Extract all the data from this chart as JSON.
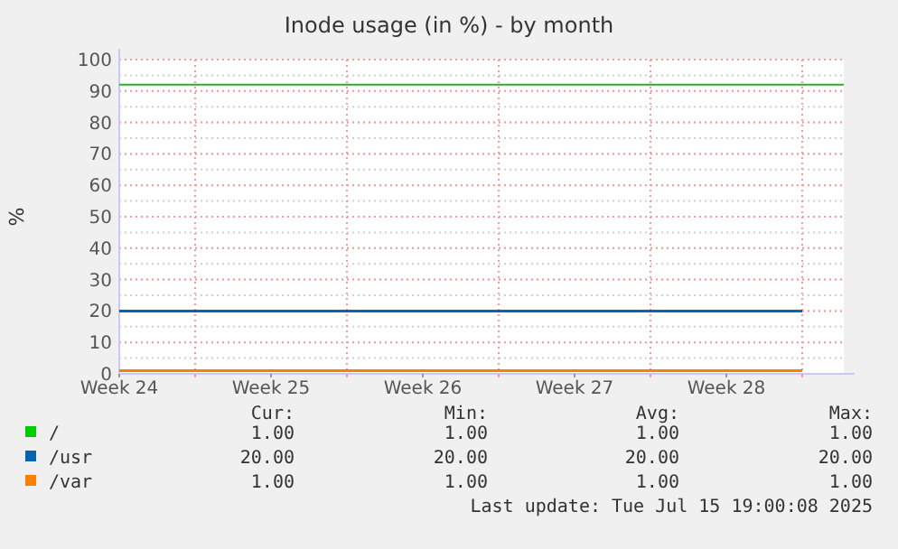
{
  "chart_data": {
    "type": "line",
    "title": "Inode usage (in %) - by month",
    "ylabel": "%",
    "categories": [
      "Week 24",
      null,
      "Week 25",
      null,
      "Week 26",
      null,
      "Week 27",
      null,
      "Week 28",
      null
    ],
    "ylim": [
      0,
      100
    ],
    "yticks": [
      0,
      10,
      20,
      30,
      40,
      50,
      60,
      70,
      80,
      90,
      100
    ],
    "series": [
      {
        "name": "/",
        "color": "#00cc00",
        "values": [
          null,
          null,
          null,
          null,
          null,
          null,
          null,
          null,
          null,
          null
        ]
      },
      {
        "name": "/usr",
        "color": "#0066b3",
        "values": [
          20,
          20,
          20,
          20,
          20,
          20,
          20,
          20,
          20,
          20
        ]
      },
      {
        "name": "/var",
        "color": "#ff8000",
        "values": [
          1,
          1,
          1,
          1,
          1,
          1,
          1,
          1,
          1,
          1
        ]
      }
    ],
    "ref_lines": [
      {
        "axis": "y",
        "value": 92,
        "color": "#33aa33"
      }
    ],
    "grid": true,
    "legend": "bottom",
    "annotations": [
      "Cur:",
      "Min:",
      "Avg:",
      "Max:",
      "1.00",
      "1.00",
      "1.00",
      "1.00",
      "20.00",
      "20.00",
      "20.00",
      "20.00",
      "1.00",
      "1.00",
      "1.00",
      "1.00",
      "Last update: Tue Jul 15 19:00:08 2025"
    ]
  }
}
